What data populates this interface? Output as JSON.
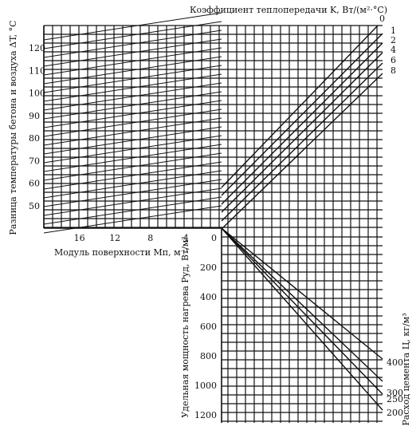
{
  "chart_data": {
    "type": "line",
    "title": "",
    "k_axis": {
      "label": "Коэффициент теплопередачи K, Вт/(м²·°С)",
      "ticks": [
        "0",
        "1",
        "2",
        "4",
        "6",
        "8"
      ]
    },
    "y_axis": {
      "label": "Разница температуры бетона и воздуха ΔT, °С",
      "ticks": [
        50,
        60,
        70,
        80,
        90,
        100,
        110,
        120
      ],
      "range": [
        40,
        130
      ]
    },
    "x_axis": {
      "label": "Модуль поверхности Mп, м⁻¹",
      "ticks": [
        16,
        12,
        8,
        4
      ],
      "range": [
        20,
        0
      ]
    },
    "p_axis": {
      "label": "Удельная мощность нагрева Pуд, Вт/м²",
      "ticks": [
        0,
        200,
        400,
        600,
        800,
        1000,
        1200
      ],
      "range": [
        0,
        1300
      ]
    },
    "c_axis": {
      "label": "Расход цемента Ц, кг/м³",
      "ticks": [
        "400",
        "300",
        "250",
        "200"
      ]
    },
    "grid": true
  }
}
